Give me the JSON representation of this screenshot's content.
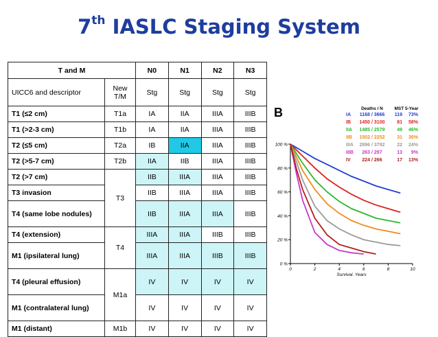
{
  "title": {
    "sup": "th",
    "num": "7",
    "text": "IASLC Staging System"
  },
  "table": {
    "header1": {
      "c0": "T and M",
      "n0": "N0",
      "n1": "N1",
      "n2": "N2",
      "n3": "N3"
    },
    "header2": {
      "c0": "UICC6 and descriptor",
      "c1": "New T/M",
      "stg": "Stg"
    },
    "rows": [
      {
        "desc": "T1 (≤2 cm)",
        "new": "T1a",
        "n0": "IA",
        "n1": "IIA",
        "n2": "IIIA",
        "n3": "IIIB"
      },
      {
        "desc": "T1 (>2-3 cm)",
        "new": "T1b",
        "n0": "IA",
        "n1": "IIA",
        "n2": "IIIA",
        "n3": "IIIB"
      },
      {
        "desc": "T2 (≤5 cm)",
        "new": "T2a",
        "n0": "IB",
        "n1": "IIA",
        "n2": "IIIA",
        "n3": "IIIB"
      },
      {
        "desc": "T2 (>5-7 cm)",
        "new": "T2b",
        "n0": "IIA",
        "n1": "IIB",
        "n2": "IIIA",
        "n3": "IIIB"
      },
      {
        "desc": "T2 (>7 cm)",
        "new": "T3",
        "n0": "IIB",
        "n1": "IIIA",
        "n2": "IIIA",
        "n3": "IIIB"
      },
      {
        "desc": "T3 invasion",
        "n0": "IIB",
        "n1": "IIIA",
        "n2": "IIIA",
        "n3": "IIIB"
      },
      {
        "desc": "T4 (same lobe nodules)",
        "n0": "IIB",
        "n1": "IIIA",
        "n2": "IIIA",
        "n3": "IIIB"
      },
      {
        "desc": "T4 (extension)",
        "new": "T4",
        "n0": "IIIA",
        "n1": "IIIA",
        "n2": "IIIB",
        "n3": "IIIB"
      },
      {
        "desc": "M1 (ipsilateral lung)",
        "n0": "IIIA",
        "n1": "IIIA",
        "n2": "IIIB",
        "n3": "IIIB"
      },
      {
        "desc": "T4 (pleural effusion)",
        "new": "M1a",
        "n0": "IV",
        "n1": "IV",
        "n2": "IV",
        "n3": "IV"
      },
      {
        "desc": "M1 (contralateral lung)",
        "n0": "IV",
        "n1": "IV",
        "n2": "IV",
        "n3": "IV"
      },
      {
        "desc": "M1 (distant)",
        "new": "M1b",
        "n0": "IV",
        "n1": "IV",
        "n2": "IV",
        "n3": "IV"
      }
    ]
  },
  "chart_data": {
    "type": "line",
    "panel_label": "B",
    "xlabel": "Survival, Years",
    "ylabel": "",
    "xlim": [
      0,
      10
    ],
    "ylim": [
      0,
      100
    ],
    "x_ticks": [
      "0",
      "2",
      "4",
      "6",
      "8",
      "10"
    ],
    "y_ticks": [
      "0 %",
      "20 %",
      "40 %",
      "60 %",
      "80 %",
      "100 %"
    ],
    "legend_headers": {
      "deaths": "Deaths / N",
      "mst": "MST 5-Year"
    },
    "series": [
      {
        "name": "IA",
        "deaths_n": "1168 / 3666",
        "mst": "119",
        "five_year": "73%",
        "color": "#1f3fd1",
        "x": [
          0,
          0.5,
          1,
          2,
          3,
          4,
          5,
          6,
          7,
          8,
          9
        ],
        "y": [
          100,
          97,
          94,
          88,
          83,
          78,
          73,
          69,
          65,
          62,
          59
        ]
      },
      {
        "name": "IB",
        "deaths_n": "1450 / 3100",
        "mst": "81",
        "five_year": "58%",
        "color": "#e21d1d",
        "x": [
          0,
          0.5,
          1,
          2,
          3,
          4,
          5,
          6,
          7,
          8,
          9
        ],
        "y": [
          100,
          95,
          90,
          80,
          71,
          64,
          58,
          53,
          49,
          46,
          43
        ]
      },
      {
        "name": "IIA",
        "deaths_n": "1485 / 2579",
        "mst": "49",
        "five_year": "46%",
        "color": "#2bb82b",
        "x": [
          0,
          0.5,
          1,
          2,
          3,
          4,
          5,
          6,
          7,
          8,
          9
        ],
        "y": [
          100,
          92,
          84,
          70,
          60,
          52,
          46,
          42,
          38,
          36,
          34
        ]
      },
      {
        "name": "IIB",
        "deaths_n": "1502 / 2252",
        "mst": "31",
        "five_year": "36%",
        "color": "#f28a1a",
        "x": [
          0,
          0.5,
          1,
          2,
          3,
          4,
          5,
          6,
          7,
          8,
          9
        ],
        "y": [
          100,
          89,
          78,
          62,
          50,
          42,
          36,
          32,
          29,
          27,
          25
        ]
      },
      {
        "name": "IIIA",
        "deaths_n": "2896 / 3792",
        "mst": "22",
        "five_year": "24%",
        "color": "#9a9a9a",
        "x": [
          0,
          0.5,
          1,
          2,
          3,
          4,
          5,
          6,
          7,
          8,
          9
        ],
        "y": [
          100,
          85,
          70,
          48,
          36,
          29,
          24,
          20,
          18,
          16,
          15
        ]
      },
      {
        "name": "IIIB",
        "deaths_n": "263 / 297",
        "mst": "13",
        "five_year": "9%",
        "color": "#c837c8",
        "x": [
          0,
          0.5,
          1,
          2,
          3,
          4,
          5,
          6
        ],
        "y": [
          100,
          75,
          53,
          26,
          16,
          11,
          9,
          8
        ]
      },
      {
        "name": "IV",
        "deaths_n": "224 / 266",
        "mst": "17",
        "five_year": "13%",
        "color": "#b01e1e",
        "x": [
          0,
          0.5,
          1,
          2,
          3,
          4,
          5,
          6,
          7
        ],
        "y": [
          100,
          79,
          62,
          38,
          24,
          16,
          13,
          10,
          8
        ]
      }
    ]
  }
}
